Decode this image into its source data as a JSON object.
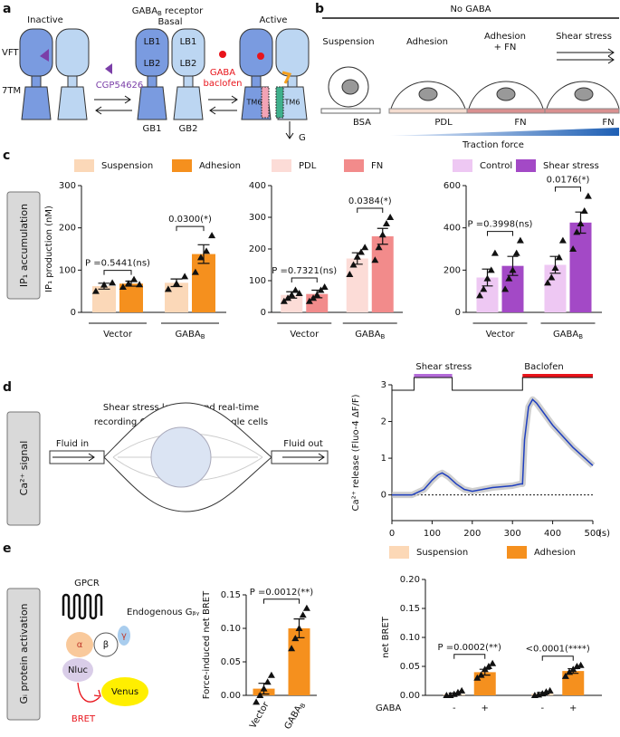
{
  "panel_labels": [
    "a",
    "b",
    "c",
    "d",
    "e"
  ],
  "panel_a": {
    "title": [
      "GABA",
      "B",
      " receptor"
    ],
    "states": [
      "Inactive",
      "Basal",
      "Active"
    ],
    "domains": [
      "VFT",
      "7TM"
    ],
    "lobes": [
      "LB1",
      "LB2"
    ],
    "subunits": [
      "GB1",
      "GB2"
    ],
    "antagonist": "CGP54626",
    "agonists": [
      "GABA",
      "baclofen"
    ],
    "helix": "TM6",
    "gprotein": "G"
  },
  "panel_b": {
    "title": "No GABA",
    "conditions": [
      "Suspension",
      "Adhesion",
      "Adhesion",
      "Shear stress"
    ],
    "fn_note": "+ FN",
    "substrates": [
      "BSA",
      "PDL",
      "FN",
      "FN"
    ],
    "force": "Traction  force"
  },
  "side_labels": {
    "c": "IP₁ accumulation",
    "d": "Ca²⁺ signal",
    "e": "Gᵢ protein activation"
  },
  "panel_d": {
    "lines": [
      "Shear stress loading and real-time",
      "recording Ca²⁺ response in single cells"
    ],
    "inlet": "Fluid in",
    "outlet": "Fluid out"
  },
  "panel_e": {
    "receptor": "GPCR",
    "gbg": "Endogenous Gᵦᵧ",
    "subunits": [
      "α",
      "β",
      "γ"
    ],
    "donor": "Nluc",
    "acceptor": "Venus",
    "signal": "BRET"
  },
  "chart_data": [
    {
      "type": "bar",
      "ylabel": "IP₁ production (nM)",
      "ylim": [
        0,
        300
      ],
      "yticks": [
        0,
        100,
        200,
        300
      ],
      "groups": [
        {
          "t": "Vector"
        },
        {
          "t": "GABA",
          "sub": "B"
        }
      ],
      "annotations": [
        "P =0.5441(ns)",
        "0.0300(*)"
      ],
      "series": [
        {
          "name": "Suspension",
          "color": "#fbd8b8",
          "values": [
            62,
            70
          ],
          "errors": [
            7,
            9
          ],
          "points": [
            [
              50,
              65,
              70
            ],
            [
              55,
              68,
              85
            ]
          ]
        },
        {
          "name": "Adhesion",
          "color": "#f5901e",
          "values": [
            68,
            138
          ],
          "errors": [
            6,
            22
          ],
          "points": [
            [
              60,
              68,
              78,
              66
            ],
            [
              95,
              130,
              145,
              182
            ]
          ]
        }
      ]
    },
    {
      "type": "bar",
      "ylim": [
        0,
        400
      ],
      "yticks": [
        0,
        100,
        200,
        300,
        400
      ],
      "groups": [
        {
          "t": "Vector"
        },
        {
          "t": "GABA",
          "sub": "B"
        }
      ],
      "annotations": [
        "P =0.7321(ns)",
        "0.0384(*)"
      ],
      "series": [
        {
          "name": "PDL",
          "color": "#fcdcd7",
          "values": [
            55,
            170
          ],
          "errors": [
            10,
            18
          ],
          "points": [
            [
              35,
              45,
              55,
              70,
              60
            ],
            [
              120,
              150,
              175,
              190,
              205
            ]
          ]
        },
        {
          "name": "FN",
          "color": "#f28b8b",
          "values": [
            58,
            240
          ],
          "errors": [
            12,
            25
          ],
          "points": [
            [
              35,
              45,
              55,
              70,
              80
            ],
            [
              165,
              205,
              245,
              280,
              300
            ]
          ]
        }
      ]
    },
    {
      "type": "bar",
      "ylim": [
        0,
        600
      ],
      "yticks": [
        0,
        200,
        400,
        600
      ],
      "groups": [
        {
          "t": "Vector"
        },
        {
          "t": "GABA",
          "sub": "B"
        }
      ],
      "annotations": [
        "P =0.3998(ns)",
        "0.0176(*)"
      ],
      "series": [
        {
          "name": "Control",
          "color": "#eec8f3",
          "values": [
            165,
            225
          ],
          "errors": [
            40,
            40
          ],
          "points": [
            [
              80,
              110,
              160,
              200,
              280
            ],
            [
              140,
              165,
              210,
              260,
              340
            ]
          ]
        },
        {
          "name": "Shear stress",
          "color": "#a349c6",
          "values": [
            220,
            425
          ],
          "errors": [
            45,
            50
          ],
          "points": [
            [
              110,
              160,
              200,
              280,
              340
            ],
            [
              300,
              380,
              420,
              480,
              550
            ]
          ]
        }
      ]
    },
    {
      "type": "line",
      "ylabel": "Ca²⁺ release  (Fluo-4  ΔF/F)",
      "xunit": "(s)",
      "xlim": [
        0,
        500
      ],
      "xticks": [
        0,
        100,
        200,
        300,
        400,
        500
      ],
      "ylim": [
        -0.7,
        3
      ],
      "yticks": [
        0,
        1,
        2,
        3
      ],
      "color": "#1f3fbf",
      "x": [
        0,
        50,
        80,
        100,
        115,
        125,
        140,
        160,
        180,
        200,
        250,
        300,
        320,
        325,
        330,
        340,
        350,
        360,
        380,
        400,
        450,
        500
      ],
      "values": [
        0,
        0,
        0.15,
        0.4,
        0.55,
        0.6,
        0.5,
        0.3,
        0.15,
        0.1,
        0.2,
        0.25,
        0.3,
        0.3,
        1.5,
        2.4,
        2.6,
        2.5,
        2.2,
        1.9,
        1.3,
        0.8
      ],
      "stimuli": [
        {
          "label": "Shear stress",
          "x": [
            55,
            150
          ],
          "color": "#b36ad8"
        },
        {
          "label": "Baclofen",
          "x": [
            325,
            500
          ],
          "color": "#e8141b"
        }
      ]
    },
    {
      "type": "bar",
      "ylabel": "Force-induced net BRET",
      "ylim": [
        0,
        0.15
      ],
      "yticks": [
        {
          "value": 0,
          "label": "0.00"
        },
        {
          "value": 0.05,
          "label": "0.05"
        },
        {
          "value": 0.1,
          "label": "0.10"
        },
        {
          "value": 0.15,
          "label": "0.15"
        }
      ],
      "groups": [
        {
          "t": "Vector"
        },
        {
          "t": "GABA",
          "sub": "B"
        }
      ],
      "annotation": "P =0.0012(**)",
      "color": "#f5901e",
      "values": [
        0.01,
        0.1
      ],
      "errors": [
        0.008,
        0.014
      ],
      "points": [
        [
          -0.01,
          0,
          0.01,
          0.02,
          0.03
        ],
        [
          0.07,
          0.085,
          0.1,
          0.12,
          0.13
        ]
      ]
    },
    {
      "type": "bar",
      "ylabel": "net BRET",
      "xlabel": "GABA",
      "ylim": [
        0,
        0.2
      ],
      "yticks": [
        {
          "value": 0,
          "label": "0.00"
        },
        {
          "value": 0.05,
          "label": "0.05"
        },
        {
          "value": 0.1,
          "label": "0.10"
        },
        {
          "value": 0.15,
          "label": "0.15"
        },
        {
          "value": 0.2,
          "label": "0.20"
        }
      ],
      "bar_labels": [
        "-",
        "+"
      ],
      "annotations": [
        "P =0.0002(**)",
        "<0.0001(****)"
      ],
      "series": [
        {
          "name": "Suspension",
          "color": "#fcd8b6",
          "values": [
            0.002,
            0.003
          ],
          "errors": [
            0.002,
            0.002
          ],
          "points": [
            [
              0,
              0,
              0.002,
              0.005,
              0.008
            ],
            [
              0,
              0.001,
              0.003,
              0.006,
              0.008
            ]
          ]
        },
        {
          "name": "Adhesion",
          "color": "#f5901e",
          "values": [
            0.04,
            0.042
          ],
          "errors": [
            0.005,
            0.004
          ],
          "points": [
            [
              0.03,
              0.035,
              0.045,
              0.05,
              0.055
            ],
            [
              0.033,
              0.04,
              0.045,
              0.05,
              0.052
            ]
          ]
        }
      ]
    }
  ]
}
